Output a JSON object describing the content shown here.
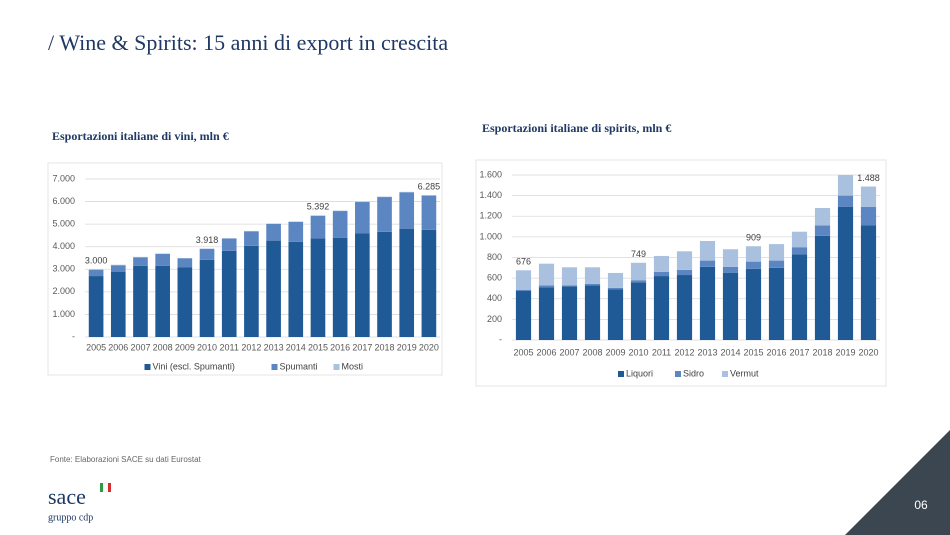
{
  "slide": {
    "title": "/ Wine & Spirits: 15 anni di export in crescita",
    "source": "Fonte: Elaborazioni SACE su dati Eurostat",
    "logo": "sace",
    "logo_sub": "gruppo cdp",
    "page": "06"
  },
  "chart_data": [
    {
      "type": "bar",
      "stacked": true,
      "title": "Esportazioni italiane di vini, mln €",
      "categories": [
        "2005",
        "2006",
        "2007",
        "2008",
        "2009",
        "2010",
        "2011",
        "2012",
        "2013",
        "2014",
        "2015",
        "2016",
        "2017",
        "2018",
        "2019",
        "2020"
      ],
      "series": [
        {
          "name": "Vini (escl. Spumanti)",
          "color": "#1f5a96",
          "values": [
            2700,
            2880,
            3150,
            3150,
            3080,
            3420,
            3820,
            4040,
            4270,
            4220,
            4370,
            4400,
            4600,
            4660,
            4800,
            4750
          ]
        },
        {
          "name": "Spumanti",
          "color": "#5b86c1",
          "values": [
            280,
            300,
            380,
            530,
            400,
            478,
            540,
            640,
            740,
            880,
            1000,
            1180,
            1380,
            1540,
            1610,
            1515
          ]
        },
        {
          "name": "Mosti",
          "color": "#a9c0de",
          "values": [
            20,
            20,
            20,
            20,
            20,
            20,
            20,
            20,
            20,
            20,
            22,
            20,
            20,
            20,
            20,
            20
          ]
        }
      ],
      "annotations": [
        {
          "x": "2005",
          "label": "3.000",
          "value": 3000
        },
        {
          "x": "2010",
          "label": "3.918",
          "value": 3918
        },
        {
          "x": "2015",
          "label": "5.392",
          "value": 5392
        },
        {
          "x": "2020",
          "label": "6.285",
          "value": 6285
        }
      ],
      "ylim": [
        0,
        7000
      ],
      "yticks": [
        {
          "value": 0,
          "label": "-"
        },
        {
          "value": 1000,
          "label": "1.000"
        },
        {
          "value": 2000,
          "label": "2.000"
        },
        {
          "value": 3000,
          "label": "3.000"
        },
        {
          "value": 4000,
          "label": "4.000"
        },
        {
          "value": 5000,
          "label": "5.000"
        },
        {
          "value": 6000,
          "label": "6.000"
        },
        {
          "value": 7000,
          "label": "7.000"
        }
      ],
      "grid": true,
      "legend": "bottom"
    },
    {
      "type": "bar",
      "stacked": true,
      "title": "Esportazioni italiane di spirits, mln €",
      "categories": [
        "2005",
        "2006",
        "2007",
        "2008",
        "2009",
        "2010",
        "2011",
        "2012",
        "2013",
        "2014",
        "2015",
        "2016",
        "2017",
        "2018",
        "2019",
        "2020"
      ],
      "series": [
        {
          "name": "Liquori",
          "color": "#1f5a96",
          "values": [
            475,
            510,
            520,
            530,
            490,
            560,
            620,
            630,
            710,
            650,
            690,
            700,
            830,
            1010,
            1290,
            1110
          ]
        },
        {
          "name": "Sidro",
          "color": "#5b86c1",
          "values": [
            10,
            20,
            10,
            15,
            15,
            20,
            40,
            50,
            60,
            60,
            70,
            70,
            70,
            100,
            110,
            180
          ]
        },
        {
          "name": "Vermut",
          "color": "#a9c0de",
          "values": [
            191,
            210,
            175,
            160,
            145,
            169,
            155,
            180,
            190,
            170,
            149,
            160,
            150,
            170,
            200,
            198
          ]
        }
      ],
      "annotations": [
        {
          "x": "2005",
          "label": "676",
          "value": 676
        },
        {
          "x": "2010",
          "label": "749",
          "value": 749
        },
        {
          "x": "2015",
          "label": "909",
          "value": 909
        },
        {
          "x": "2020",
          "label": "1.488",
          "value": 1488
        }
      ],
      "ylim": [
        0,
        1600
      ],
      "yticks": [
        {
          "value": 0,
          "label": "-"
        },
        200,
        400,
        600,
        800,
        {
          "value": 1000,
          "label": "1.000"
        },
        {
          "value": 1200,
          "label": "1.200"
        },
        {
          "value": 1400,
          "label": "1.400"
        },
        {
          "value": 1600,
          "label": "1.600"
        }
      ],
      "grid": true,
      "legend": "bottom"
    }
  ]
}
